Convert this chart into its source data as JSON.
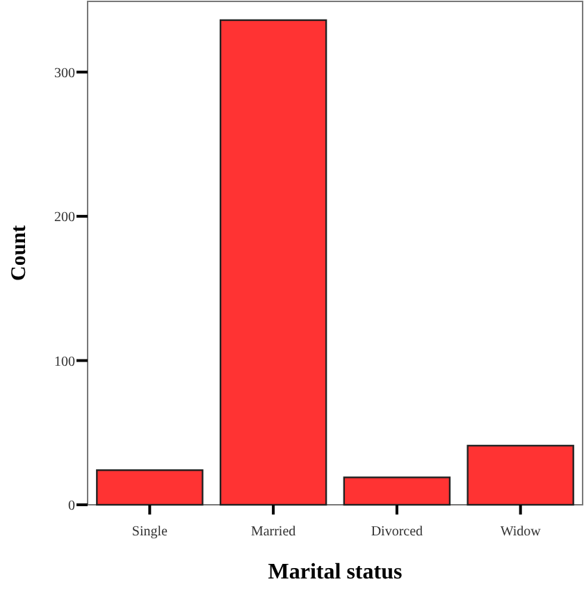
{
  "chart_data": {
    "type": "bar",
    "xlabel": "Marital status",
    "ylabel": "Count",
    "categories": [
      "Single",
      "Married",
      "Divorced",
      "Widow"
    ],
    "values": [
      24,
      336,
      19,
      41
    ],
    "color": "#ff3333",
    "ylim": [
      0,
      349
    ],
    "yticks": [
      0,
      100,
      200,
      300
    ],
    "grid": false,
    "legend": false
  }
}
